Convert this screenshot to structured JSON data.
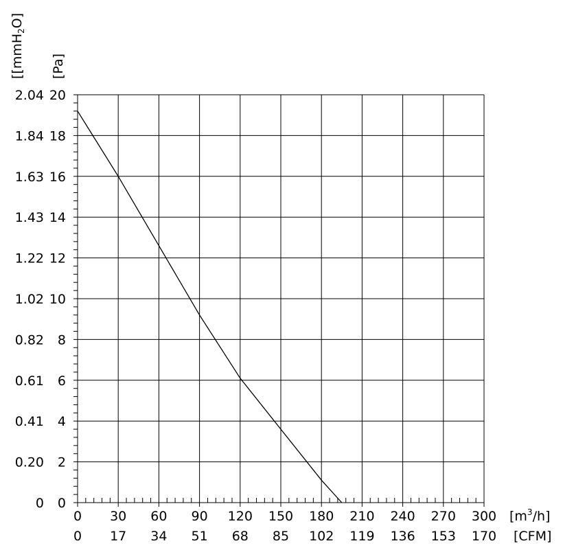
{
  "chart_data": {
    "type": "line",
    "xlabel": "[m³/h]",
    "xlabel_base": "[m",
    "xlabel_sup": "3",
    "xlabel_tail": "/h]",
    "x2label": "[CFM]",
    "ylabel": "[Pa]",
    "y2label_base": "[[mmH",
    "y2label_sub": "2",
    "y2label_tail": "O]",
    "xlim": [
      0,
      300
    ],
    "ylim": [
      0,
      20
    ],
    "grid": true,
    "x_ticks": [
      "0",
      "30",
      "60",
      "90",
      "120",
      "150",
      "180",
      "210",
      "240",
      "270",
      "300"
    ],
    "x2_ticks": [
      "0",
      "17",
      "34",
      "51",
      "68",
      "85",
      "102",
      "119",
      "136",
      "153",
      "170"
    ],
    "y_ticks": [
      "0",
      "2",
      "4",
      "6",
      "8",
      "10",
      "12",
      "14",
      "16",
      "18",
      "20"
    ],
    "y2_ticks": [
      "0",
      "0.20",
      "0.41",
      "0.61",
      "0.82",
      "1.02",
      "1.22",
      "1.43",
      "1.63",
      "1.84",
      "2.04"
    ],
    "series": [
      {
        "x": [
          0,
          30,
          60,
          90,
          120,
          150,
          180,
          195
        ],
        "y": [
          19.2,
          16.0,
          12.6,
          9.2,
          6.1,
          3.6,
          1.1,
          0
        ]
      }
    ]
  }
}
